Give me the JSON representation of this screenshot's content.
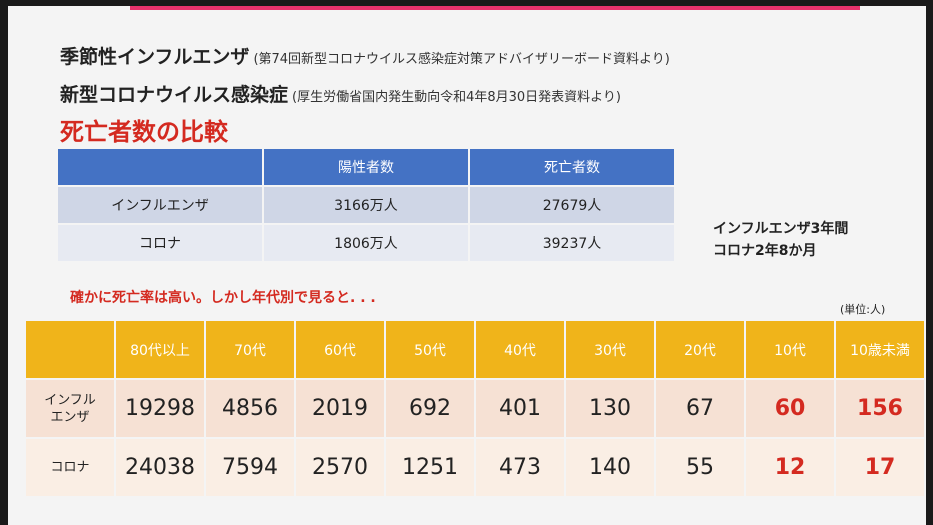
{
  "header": {
    "line1_title": "季節性インフルエンザ",
    "line1_source": "(第74回新型コロナウイルス感染症対策アドバイザリーボード資料より)",
    "line2_title": "新型コロナウイルス感染症",
    "line2_source": "(厚生労働省国内発生動向令和4年8月30日発表資料より)",
    "heading": "死亡者数の比較"
  },
  "summary_table": {
    "columns": [
      "",
      "陽性者数",
      "死亡者数"
    ],
    "rows": [
      [
        "インフルエンザ",
        "3166万人",
        "27679人"
      ],
      [
        "コロナ",
        "1806万人",
        "39237人"
      ]
    ]
  },
  "note": {
    "line1": "インフルエンザ3年間",
    "line2": "コロナ2年8か月"
  },
  "subheading": "確かに死亡率は高い。しかし年代別で見ると. . .",
  "unit": "(単位:人)",
  "age_table": {
    "columns": [
      "",
      "80代以上",
      "70代",
      "60代",
      "50代",
      "40代",
      "30代",
      "20代",
      "10代",
      "10歳未満"
    ],
    "rows": [
      {
        "label_line1": "インフル",
        "label_line2": "エンザ",
        "values": [
          "19298",
          "4856",
          "2019",
          "692",
          "401",
          "130",
          "67",
          "60",
          "156"
        ]
      },
      {
        "label_line1": "コロナ",
        "label_line2": "",
        "values": [
          "24038",
          "7594",
          "2570",
          "1251",
          "473",
          "140",
          "55",
          "12",
          "17"
        ]
      }
    ]
  },
  "colors": {
    "accent_bar": "#e8336d",
    "header_blue": "#4472c4",
    "header_orange": "#f0b41a",
    "highlight_red": "#d42a20"
  }
}
